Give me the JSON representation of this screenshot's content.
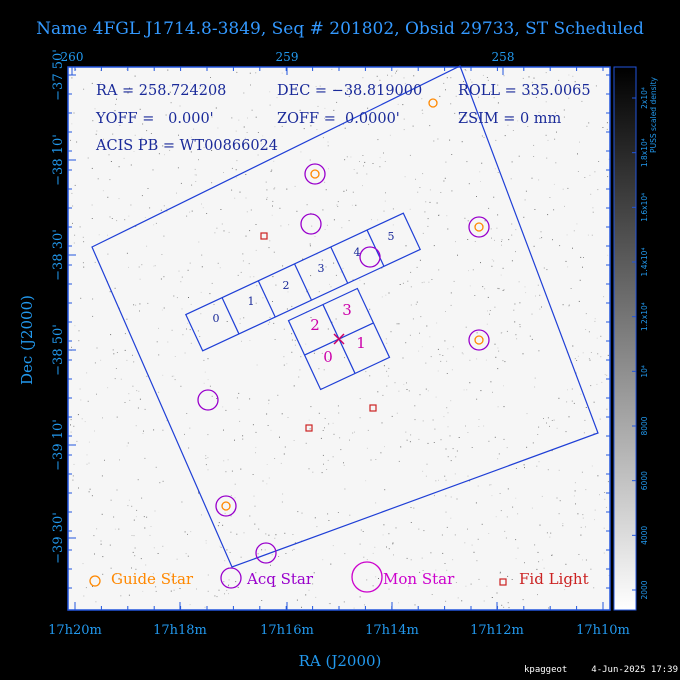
{
  "header": {
    "title": "Name 4FGL J1714.8-3849, Seq # 201802, Obsid 29733, ST Scheduled"
  },
  "params": {
    "line1": [
      "RA = 258.724208",
      "DEC = −38.819000",
      "ROLL = 335.0065"
    ],
    "line2": [
      "YOFF =   0.000'",
      "ZOFF =  0.0000'",
      "ZSIM = 0 mm"
    ],
    "line3": "ACIS PB = WT00866024"
  },
  "axes": {
    "x_label": "RA (J2000)",
    "y_label": "Dec (J2000)",
    "x_ticks_bottom": [
      "17h20m",
      "17h18m",
      "17h16m",
      "17h14m",
      "17h12m",
      "17h10m"
    ],
    "x_ticks_top": [
      "260",
      "259",
      "258"
    ],
    "y_ticks": [
      "−37 50'",
      "−38 10'",
      "−38 30'",
      "−38 50'",
      "−39 10'",
      "−39 30'"
    ]
  },
  "colorbar": {
    "label": "PUSS scaled density",
    "ticks": [
      "2000",
      "4000",
      "6000",
      "8000",
      "10⁴",
      "1.2x10⁴",
      "1.4x10⁴",
      "1.6x10⁴",
      "1.8x10⁴",
      "2x10⁴"
    ]
  },
  "ccds_i": [
    "0",
    "1",
    "2",
    "3"
  ],
  "ccds_s": [
    "0",
    "1",
    "2",
    "3",
    "4",
    "5"
  ],
  "legend": {
    "guide": "Guide Star",
    "acq": "Acq Star",
    "mon": "Mon Star",
    "fid": "Fid Light"
  },
  "footer": {
    "user": "kpaggeot",
    "timestamp": "4-Jun-2025 17:39"
  },
  "colors": {
    "frame": "#2255dd",
    "guide": "#ff8800",
    "acq": "#9900cc",
    "mon": "#cc00cc",
    "fid": "#cc2222",
    "label": "#2299ee"
  }
}
